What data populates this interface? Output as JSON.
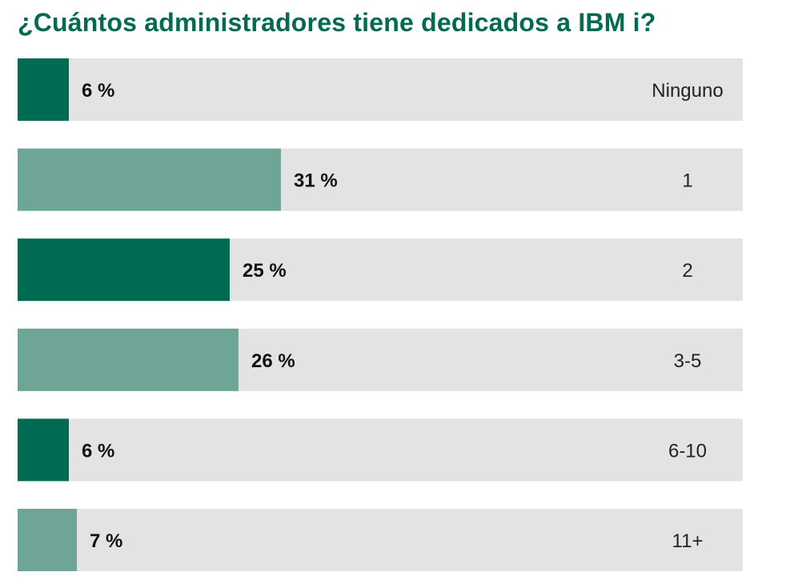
{
  "chart_data": {
    "type": "bar",
    "orientation": "horizontal",
    "title": "¿Cuántos administradores tiene dedicados a IBM i?",
    "categories": [
      "Ninguno",
      "1",
      "2",
      "3-5",
      "6-10",
      "11+"
    ],
    "values": [
      6,
      31,
      25,
      26,
      6,
      7
    ],
    "value_labels": [
      "6 %",
      "31 %",
      "25 %",
      "26 %",
      "6 %",
      "7 %"
    ],
    "xlim": [
      0,
      100
    ],
    "unit": "%",
    "grid": false,
    "legend": "none",
    "colors": {
      "title": "#006a52",
      "track": "#e3e3e3",
      "bar_alternating": [
        "#006a52",
        "#6fa596"
      ]
    }
  }
}
